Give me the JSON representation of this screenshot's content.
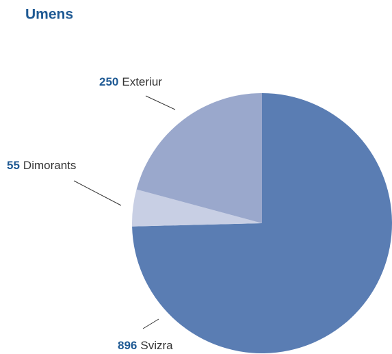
{
  "chart_data": {
    "type": "pie",
    "title": "Umens",
    "categories": [
      "Svizra",
      "Dimorants",
      "Exteriur"
    ],
    "values": [
      896,
      55,
      250
    ],
    "colors": [
      "#5a7db3",
      "#c8cfe4",
      "#9aa8cc"
    ]
  }
}
